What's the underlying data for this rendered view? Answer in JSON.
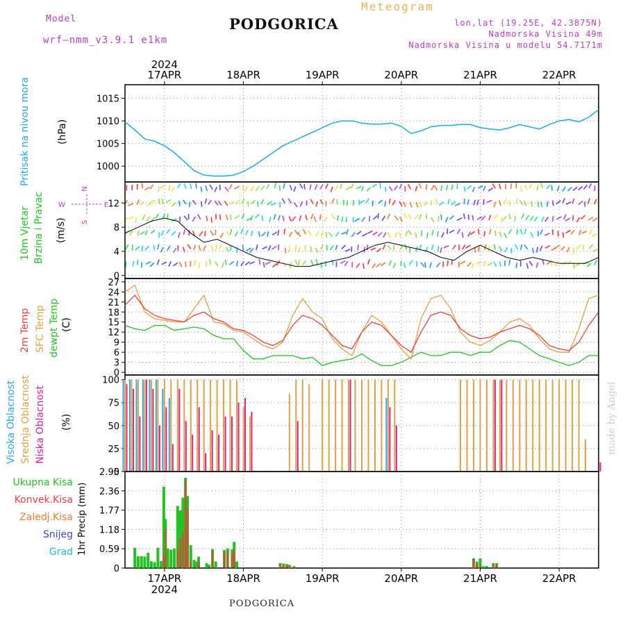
{
  "header": {
    "model_label": "Model",
    "model_name": "wrf–nmm_v3.9.1  e1km",
    "title": "PODGORICA",
    "meteogram": "Meteogram",
    "coords": "lon,lat (19.25E, 42.3875N)",
    "elevation": "Nadmorska Visina 49m",
    "model_elevation": "Nadmorska Visina u modelu 54.7171m"
  },
  "footer": {
    "station": "PODGORICA",
    "credit": "made by Angel"
  },
  "colors": {
    "pressure": "#1fa8e8",
    "wind_title": "#22c222",
    "temp2m": "#e84040",
    "sfc": "#e0a040",
    "dew": "#22c222",
    "high_cloud": "#2aa8e8",
    "mid_cloud": "#e0a040",
    "low_cloud": "#d8208f",
    "compass": "#b040c0",
    "total_precip": "#22c222",
    "conv_precip": "#e84040",
    "frozen_precip": "#e88030",
    "snow": "#4040e0",
    "hail": "#20c0c0"
  },
  "panel_labels": {
    "pressure_title": "Pritisak na nivou mora",
    "pressure_unit": "(hPa)",
    "wind_title_1": "10m Vjetar",
    "wind_title_2": "Brzina i Pravac",
    "wind_unit": "(m/s)",
    "temp_2m": "2m Temp",
    "temp_sfc": "SFC Temp",
    "temp_dew": "dewpt Temp",
    "temp_unit": "(C)",
    "cloud_high": "Visoka Oblacnost",
    "cloud_mid": "Srednja Oblacnost",
    "cloud_low": "Niska Oblacnost",
    "cloud_unit": "(%)",
    "precip_total": "Ukupna Kisa",
    "precip_conv": "Konvek.Kisa",
    "precip_frozen": "Zaledj.Kisa",
    "precip_snow": "Snijeg",
    "precip_hail": "Grad",
    "precip_axis": "1hr Precip (mm)"
  },
  "compass": {
    "n": "N",
    "s": "S",
    "e": "E",
    "w": "W"
  },
  "time_axis": {
    "year": "2024",
    "days": [
      "17APR",
      "18APR",
      "19APR",
      "20APR",
      "21APR",
      "22APR"
    ],
    "day_positions_h": [
      12,
      36,
      60,
      84,
      108,
      132
    ],
    "range_h": [
      0,
      144
    ]
  },
  "chart_data": [
    {
      "type": "line",
      "name": "pressure",
      "ylabel": "(hPa)",
      "ylim": [
        996.5,
        1018
      ],
      "yticks": [
        1000,
        1005,
        1010,
        1015
      ],
      "x": [
        0,
        3,
        6,
        9,
        12,
        15,
        18,
        21,
        24,
        27,
        30,
        33,
        36,
        39,
        42,
        45,
        48,
        51,
        54,
        57,
        60,
        63,
        66,
        69,
        72,
        75,
        78,
        81,
        84,
        87,
        90,
        93,
        96,
        99,
        102,
        105,
        108,
        111,
        114,
        117,
        120,
        123,
        126,
        129,
        132,
        135,
        138,
        141,
        144
      ],
      "series": [
        {
          "values": [
            1009.8,
            1008,
            1006,
            1005.5,
            1004.5,
            1003,
            1001,
            999,
            998,
            997.8,
            997.8,
            998,
            998.8,
            1000,
            1001.5,
            1003,
            1004.5,
            1005.5,
            1006.5,
            1007.5,
            1008.5,
            1009.5,
            1010,
            1010,
            1009.5,
            1009.3,
            1009.3,
            1009.5,
            1008.8,
            1007.2,
            1007.8,
            1008.7,
            1009,
            1009,
            1009.2,
            1009.2,
            1008.5,
            1008.2,
            1008,
            1008.5,
            1009.2,
            1008.7,
            1008.2,
            1009.2,
            1010,
            1010.3,
            1009.8,
            1010.8,
            1012.5
          ]
        }
      ]
    },
    {
      "type": "line",
      "name": "wind",
      "ylabel": "(m/s)",
      "ylim": [
        -0.5,
        15.5
      ],
      "yticks": [
        0,
        4,
        8,
        12
      ],
      "x": [
        0,
        4,
        8,
        12,
        16,
        20,
        24,
        28,
        32,
        36,
        40,
        44,
        48,
        52,
        56,
        60,
        64,
        68,
        72,
        76,
        80,
        84,
        88,
        92,
        96,
        100,
        104,
        108,
        112,
        116,
        120,
        124,
        128,
        132,
        136,
        140,
        144
      ],
      "series": [
        {
          "values": [
            7,
            8,
            9,
            9.5,
            9,
            7,
            5.5,
            6,
            5,
            4,
            3,
            2.5,
            2,
            1.5,
            1.5,
            2,
            2.5,
            3,
            4,
            5,
            5.5,
            5,
            4.5,
            4,
            3,
            2.5,
            4,
            5,
            4,
            3,
            2.5,
            3,
            2.5,
            2,
            2,
            2,
            3
          ]
        }
      ]
    },
    {
      "type": "line",
      "name": "temperature",
      "ylabel": "(C)",
      "ylim": [
        -0.8,
        28
      ],
      "yticks": [
        0,
        3,
        6,
        9,
        12,
        15,
        18,
        21,
        24,
        27
      ],
      "x": [
        0,
        3,
        6,
        9,
        12,
        15,
        18,
        21,
        24,
        27,
        30,
        33,
        36,
        39,
        42,
        45,
        48,
        51,
        54,
        57,
        60,
        63,
        66,
        69,
        72,
        75,
        78,
        81,
        84,
        87,
        90,
        93,
        96,
        99,
        102,
        105,
        108,
        111,
        114,
        117,
        120,
        123,
        126,
        129,
        132,
        135,
        138,
        141,
        144
      ],
      "series": [
        {
          "name": "2m Temp",
          "values": [
            20,
            23,
            19,
            17,
            16,
            15.5,
            15,
            17,
            18,
            16,
            15,
            13,
            12.5,
            11,
            9,
            8,
            9.5,
            14,
            17,
            16,
            14,
            11,
            8,
            7,
            12,
            15,
            14,
            11,
            8,
            6,
            12,
            17,
            18,
            17,
            13,
            11,
            10,
            10.5,
            12,
            13,
            14,
            13,
            11,
            8,
            7,
            6.5,
            9,
            14,
            18
          ]
        },
        {
          "name": "SFC Temp",
          "values": [
            24,
            26,
            18,
            16,
            15.5,
            15,
            15,
            19,
            23,
            15,
            14.5,
            12.5,
            12,
            10,
            8,
            7,
            9,
            17,
            22,
            18,
            16,
            10,
            7,
            5,
            12,
            17,
            15,
            11,
            7,
            4,
            16,
            22,
            23,
            19,
            12,
            9,
            8,
            9.5,
            12,
            15,
            16,
            14,
            10,
            7,
            6,
            6,
            13,
            22,
            23
          ]
        },
        {
          "name": "dewpt Temp",
          "values": [
            14,
            13,
            12.5,
            14,
            14,
            12.5,
            13,
            13.5,
            13,
            11,
            10,
            10,
            6.5,
            4,
            4,
            5,
            5,
            5,
            4,
            4.5,
            2,
            3,
            3.5,
            4,
            5.5,
            3.5,
            2,
            2,
            3,
            4.5,
            6,
            5,
            5,
            6,
            6,
            5,
            6,
            6,
            8,
            9.5,
            9,
            7,
            5,
            4,
            3,
            2,
            3,
            5,
            5
          ]
        }
      ]
    },
    {
      "type": "bar",
      "name": "cloud cover",
      "ylabel": "(%)",
      "ylim": [
        0,
        105
      ],
      "yticks": [
        0,
        25,
        50,
        75,
        100
      ],
      "x": [
        0,
        2,
        4,
        6,
        8,
        10,
        12,
        14,
        16,
        18,
        20,
        22,
        24,
        26,
        28,
        30,
        32,
        34,
        36,
        38,
        40,
        42,
        44,
        46,
        48,
        50,
        52,
        54,
        56,
        58,
        60,
        62,
        64,
        66,
        68,
        70,
        72,
        74,
        76,
        78,
        80,
        82,
        84,
        86,
        88,
        90,
        92,
        94,
        96,
        98,
        100,
        102,
        104,
        106,
        108,
        110,
        112,
        114,
        116,
        118,
        120,
        122,
        124,
        126,
        128,
        130,
        132,
        134,
        136,
        138,
        140,
        142,
        144
      ],
      "series": [
        {
          "name": "Visoka Oblacnost",
          "values": [
            100,
            100,
            100,
            100,
            100,
            100,
            90,
            80,
            0,
            0,
            0,
            0,
            0,
            0,
            0,
            0,
            0,
            0,
            0,
            0,
            0,
            0,
            0,
            0,
            0,
            0,
            0,
            0,
            0,
            0,
            0,
            0,
            0,
            0,
            0,
            0,
            0,
            0,
            0,
            0,
            80,
            0,
            0,
            0,
            0,
            0,
            0,
            0,
            0,
            0,
            0,
            0,
            0,
            0,
            0,
            0,
            0,
            0,
            0,
            0,
            0,
            0,
            0,
            0,
            0,
            0,
            0,
            0,
            0,
            0,
            0,
            0,
            0
          ]
        },
        {
          "name": "Srednja Oblacnost",
          "values": [
            100,
            100,
            100,
            100,
            100,
            100,
            100,
            100,
            100,
            100,
            100,
            100,
            100,
            100,
            100,
            100,
            100,
            100,
            70,
            60,
            0,
            0,
            0,
            0,
            0,
            85,
            100,
            100,
            95,
            0,
            100,
            100,
            100,
            100,
            100,
            100,
            100,
            100,
            100,
            100,
            100,
            100,
            0,
            0,
            0,
            0,
            0,
            0,
            0,
            0,
            0,
            100,
            100,
            100,
            100,
            100,
            100,
            100,
            100,
            100,
            100,
            100,
            100,
            100,
            100,
            100,
            100,
            100,
            100,
            100,
            35,
            0,
            0
          ]
        },
        {
          "name": "Niska Oblacnost",
          "values": [
            95,
            90,
            60,
            100,
            90,
            50,
            70,
            30,
            90,
            55,
            40,
            70,
            20,
            45,
            40,
            60,
            60,
            75,
            80,
            65,
            0,
            0,
            0,
            0,
            0,
            0,
            55,
            0,
            0,
            0,
            0,
            0,
            0,
            0,
            100,
            0,
            0,
            0,
            0,
            0,
            70,
            50,
            0,
            0,
            0,
            0,
            0,
            0,
            0,
            0,
            0,
            0,
            0,
            0,
            0,
            0,
            100,
            100,
            0,
            0,
            0,
            0,
            0,
            0,
            0,
            0,
            0,
            0,
            0,
            0,
            0,
            0,
            10
          ]
        }
      ]
    },
    {
      "type": "bar",
      "name": "precipitation",
      "ylabel": "1hr Precip (mm)",
      "ylim": [
        0,
        2.95
      ],
      "yticks": [
        0,
        0.59,
        1.18,
        1.77,
        2.36,
        2.95
      ],
      "x": [
        3,
        4,
        5,
        6,
        7,
        8,
        9,
        10,
        11,
        11.8,
        12.3,
        13,
        14,
        15,
        16,
        16.8,
        17.6,
        18.4,
        19,
        20,
        21,
        21.8,
        22.4,
        24.8,
        25.6,
        26.6,
        27.6,
        30.2,
        31.2,
        32.6,
        33.2,
        34,
        47.2,
        48.2,
        49.2,
        50,
        51.4,
        106,
        107,
        108,
        109,
        110,
        111,
        112,
        113
      ],
      "series": [
        {
          "name": "Ukupna Kisa",
          "values": [
            0.62,
            0.36,
            0.36,
            0.35,
            0.47,
            0.21,
            0.18,
            0.62,
            0.21,
            2.48,
            1.5,
            0.6,
            0.56,
            0.6,
            1.9,
            1.76,
            2.15,
            2.76,
            2.2,
            0.7,
            0.25,
            0.2,
            0.35,
            0.15,
            0.1,
            0.58,
            0.2,
            0.55,
            0.6,
            0.57,
            0.8,
            0.2,
            0.15,
            0.14,
            0.12,
            0.1,
            0.06,
            0.3,
            0.2,
            0.3,
            0.06,
            0.06,
            0,
            0.15,
            0.15
          ]
        },
        {
          "name": "Konvek.Kisa",
          "values": [
            0,
            0,
            0,
            0,
            0,
            0,
            0,
            0,
            0,
            0.4,
            1.2,
            0,
            0,
            0,
            0.6,
            0.9,
            1.1,
            2.68,
            1.8,
            0.2,
            0,
            0,
            0.2,
            0,
            0,
            0.5,
            0,
            0.5,
            0.5,
            0.45,
            0.55,
            0,
            0.12,
            0.1,
            0.1,
            0.06,
            0.04,
            0.28,
            0.15,
            0.1,
            0,
            0,
            0,
            0.1,
            0.1
          ]
        }
      ]
    }
  ]
}
